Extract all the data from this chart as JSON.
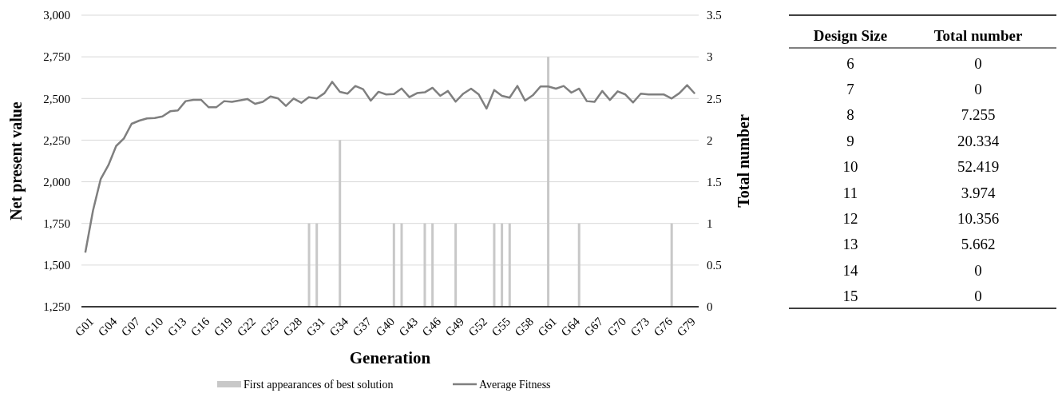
{
  "chart_data": [
    {
      "type": "bar",
      "xlabel": "Generation",
      "ylabel": "Net present value",
      "y2label": "Total number",
      "categories": [
        "G01",
        null,
        null,
        "G04",
        null,
        null,
        "G07",
        null,
        null,
        "G10",
        null,
        null,
        "G13",
        null,
        null,
        "G16",
        null,
        null,
        "G19",
        null,
        null,
        "G22",
        null,
        null,
        "G25",
        null,
        null,
        "G28",
        null,
        null,
        "G31",
        null,
        null,
        "G34",
        null,
        null,
        "G37",
        null,
        null,
        "G40",
        null,
        null,
        "G43",
        null,
        null,
        "G46",
        null,
        null,
        "G49",
        null,
        null,
        "G52",
        null,
        null,
        "G55",
        null,
        null,
        "G58",
        null,
        null,
        "G61",
        null,
        null,
        "G64",
        null,
        null,
        "G67",
        null,
        null,
        "G70",
        null,
        null,
        "G73",
        null,
        null,
        "G76",
        null,
        null,
        "G79",
        null
      ],
      "series": [
        {
          "name": "First appearances of best solution",
          "type": "bar",
          "axis": "y2",
          "color": "#c8c8c8",
          "values": [
            0,
            0,
            0,
            0,
            0,
            0,
            0,
            0,
            0,
            0,
            0,
            0,
            0,
            0,
            0,
            0,
            0,
            0,
            0,
            0,
            0,
            0,
            0,
            0,
            0,
            0,
            0,
            0,
            0,
            1,
            1,
            0,
            0,
            2,
            0,
            0,
            0,
            0,
            0,
            0,
            1,
            1,
            0,
            0,
            1,
            1,
            0,
            0,
            1,
            0,
            0,
            0,
            0,
            1,
            1,
            1,
            0,
            0,
            0,
            0,
            3,
            0,
            0,
            0,
            1,
            0,
            0,
            0,
            0,
            0,
            0,
            0,
            0,
            0,
            0,
            0,
            1,
            0,
            0,
            0
          ]
        },
        {
          "name": "Average Fitness",
          "type": "line",
          "axis": "y",
          "color": "#7f7f7f",
          "values": [
            1575,
            1828,
            2017,
            2100,
            2215,
            2260,
            2348,
            2367,
            2380,
            2383,
            2392,
            2423,
            2428,
            2484,
            2492,
            2492,
            2447,
            2448,
            2484,
            2480,
            2488,
            2497,
            2468,
            2480,
            2512,
            2500,
            2455,
            2500,
            2474,
            2508,
            2500,
            2532,
            2600,
            2540,
            2529,
            2575,
            2556,
            2487,
            2540,
            2524,
            2527,
            2560,
            2508,
            2532,
            2537,
            2564,
            2516,
            2545,
            2481,
            2529,
            2559,
            2524,
            2439,
            2551,
            2516,
            2505,
            2575,
            2487,
            2519,
            2572,
            2572,
            2559,
            2575,
            2535,
            2559,
            2484,
            2480,
            2545,
            2491,
            2543,
            2524,
            2476,
            2529,
            2524,
            2524,
            2524,
            2500,
            2532,
            2580,
            2529
          ]
        }
      ],
      "ylim": [
        1250,
        3000
      ],
      "yticks": [
        {
          "value": 1250,
          "label": "1,250"
        },
        {
          "value": 1500,
          "label": "1,500"
        },
        {
          "value": 1750,
          "label": "1,750"
        },
        {
          "value": 2000,
          "label": "2,000"
        },
        {
          "value": 2250,
          "label": "2,250"
        },
        {
          "value": 2500,
          "label": "2,500"
        },
        {
          "value": 2750,
          "label": "2,750"
        },
        {
          "value": 3000,
          "label": "3,000"
        }
      ],
      "y2lim": [
        0,
        3.5
      ],
      "y2ticks": [
        0,
        0.5,
        1,
        1.5,
        2,
        2.5,
        3,
        3.5
      ],
      "grid": "y",
      "legend": "bottom",
      "marker": "none",
      "line_style": "solid"
    },
    {
      "type": "heatmap",
      "ylabel": "Design Size",
      "categories": [
        "Total number"
      ],
      "y_categories": [
        "6",
        "7",
        "8",
        "9",
        "10",
        "11",
        "12",
        "13",
        "14",
        "15"
      ],
      "cells": [
        [
          0
        ],
        [
          0
        ],
        [
          7.255
        ],
        [
          20.334
        ],
        [
          52.419
        ],
        [
          3.974
        ],
        [
          10.356
        ],
        [
          5.662
        ],
        [
          0
        ],
        [
          0
        ]
      ],
      "data_labels": true
    }
  ]
}
